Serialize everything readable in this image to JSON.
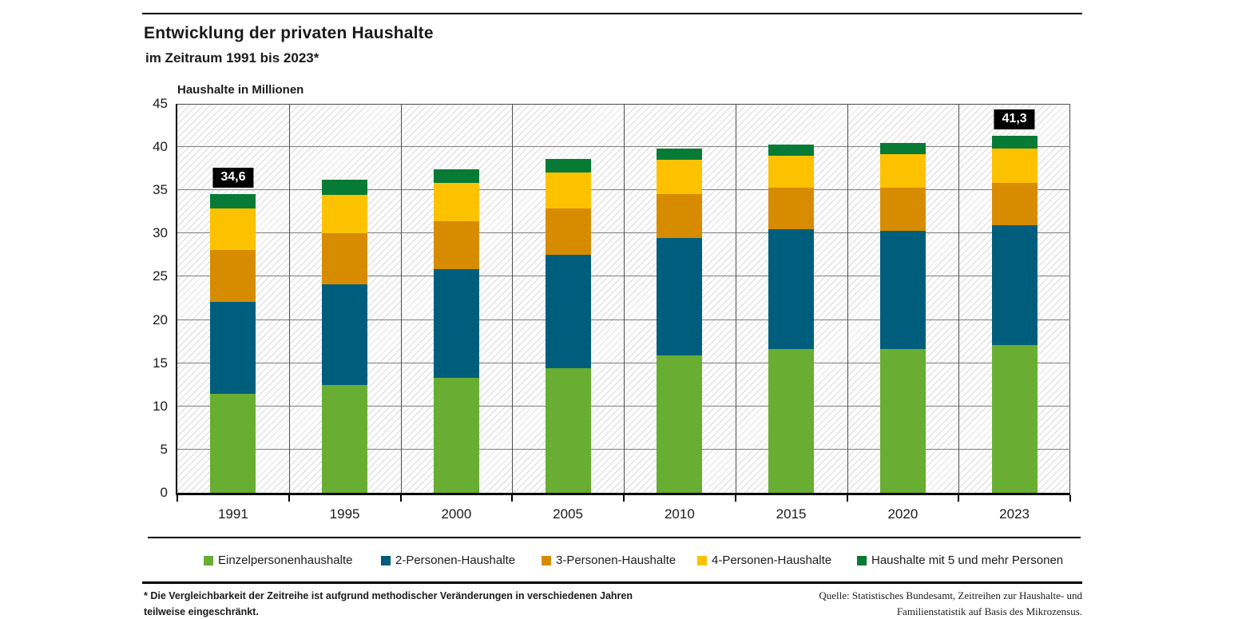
{
  "header": {
    "title": "Entwicklung der privaten Haushalte",
    "subtitle": "im Zeitraum 1991 bis 2023*",
    "axis_title": "Haushalte in Millionen"
  },
  "chart_data": {
    "type": "bar",
    "stacked": true,
    "title": "Entwicklung der privaten Haushalte im Zeitraum 1991 bis 2023*",
    "ylabel": "Haushalte in Millionen",
    "xlabel": "",
    "ylim": [
      0,
      45
    ],
    "ytick_step": 5,
    "ytick_labels": [
      "0",
      "5",
      "10",
      "15",
      "20",
      "25",
      "30",
      "35",
      "40",
      "45"
    ],
    "grid": true,
    "hatch_background": true,
    "legend_position": "bottom",
    "categories": [
      "1991",
      "1995",
      "2000",
      "2005",
      "2010",
      "2015",
      "2020",
      "2023"
    ],
    "series": [
      {
        "name": "Einzelpersonenhaushalte",
        "color": "#68ae32",
        "values": [
          11.5,
          12.5,
          13.3,
          14.4,
          15.9,
          16.6,
          16.6,
          17.1
        ]
      },
      {
        "name": "2-Personen-Haushalte",
        "color": "#005e7d",
        "values": [
          10.6,
          11.6,
          12.6,
          13.1,
          13.6,
          13.9,
          13.7,
          13.9
        ]
      },
      {
        "name": "3-Personen-Haushalte",
        "color": "#d78c00",
        "values": [
          6.0,
          5.9,
          5.5,
          5.4,
          5.1,
          4.8,
          5.0,
          4.9
        ]
      },
      {
        "name": "4-Personen-Haushalte",
        "color": "#fcc200",
        "values": [
          4.8,
          4.5,
          4.5,
          4.2,
          3.9,
          3.7,
          3.9,
          3.9
        ]
      },
      {
        "name": "Haushalte mit 5 und mehr Personen",
        "color": "#077b35",
        "values": [
          1.7,
          1.7,
          1.5,
          1.5,
          1.3,
          1.3,
          1.3,
          1.5
        ]
      }
    ],
    "totals": [
      34.6,
      36.2,
      37.4,
      38.6,
      39.8,
      40.3,
      40.5,
      41.3
    ],
    "bar_labels": [
      {
        "category": "1991",
        "text": "34,6"
      },
      {
        "category": "2023",
        "text": "41,3"
      }
    ]
  },
  "footer": {
    "footnote_line1": "* Die Vergleichbarkeit der Zeitreihe ist aufgrund methodischer Veränderungen in verschiedenen Jahren",
    "footnote_line2": "teilweise eingeschränkt.",
    "source_line1": "Quelle: Statistisches Bundesamt, Zeitreihen zur Haushalte- und",
    "source_line2": "Familienstatistik auf Basis des Mikrozensus."
  }
}
